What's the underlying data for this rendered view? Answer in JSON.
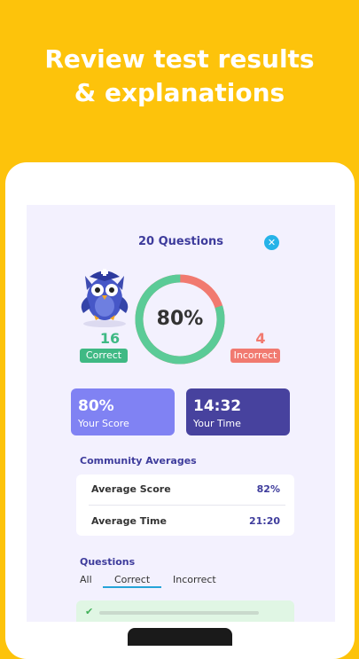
{
  "headline": {
    "line1": "Review test results",
    "line2": "& explanations"
  },
  "results": {
    "title": "20 Questions",
    "close_icon": "close-icon",
    "score_percent": 80,
    "score_label": "80%",
    "correct": {
      "count": "16",
      "label": "Correct",
      "color": "#3FB984"
    },
    "incorrect": {
      "count": "4",
      "label": "Incorrect",
      "color": "#F17A70"
    }
  },
  "cards": {
    "score": {
      "value": "80%",
      "label": "Your Score",
      "color": "#8082F3"
    },
    "time": {
      "value": "14:32",
      "label": "Your Time",
      "color": "#47429E"
    }
  },
  "community": {
    "title": "Community Averages",
    "rows": [
      {
        "label": "Average Score",
        "value": "82%"
      },
      {
        "label": "Average Time",
        "value": "21:20"
      }
    ]
  },
  "questions": {
    "title": "Questions",
    "tabs": [
      "All",
      "Correct",
      "Incorrect"
    ],
    "selected_tab": "Correct"
  },
  "colors": {
    "background": "#FDC30B",
    "accent": "#3E3C9C",
    "ring_correct": "#5BCB97",
    "ring_incorrect": "#F17A70"
  }
}
